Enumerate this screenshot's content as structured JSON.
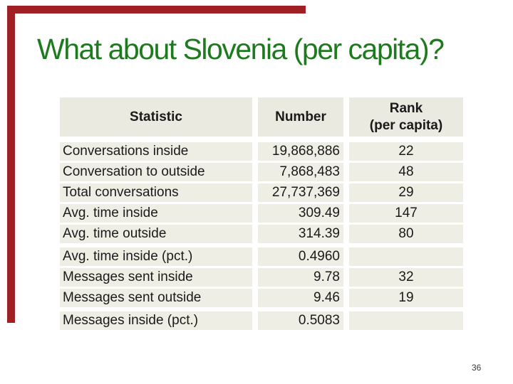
{
  "slide": {
    "title": "What about Slovenia (per capita)?",
    "page_number": "36"
  },
  "theme": {
    "background": "#ffffff",
    "title_color": "#1e7a1e",
    "accent_bar_color": "#9e1f24",
    "header_bg": "#eaeae0",
    "cell_bg": "#efeee5",
    "text_color": "#1a1a1a",
    "page_number_color": "#3a3a3a"
  },
  "table": {
    "columns": [
      {
        "label": "Statistic"
      },
      {
        "label": "Number"
      },
      {
        "label": "Rank",
        "label2": "(per capita)"
      }
    ],
    "rows": [
      {
        "statistic": "Conversations inside",
        "number": "19,868,886",
        "rank": "22",
        "group_start": false
      },
      {
        "statistic": "Conversation to outside",
        "number": "7,868,483",
        "rank": "48",
        "group_start": false
      },
      {
        "statistic": "Total conversations",
        "number": "27,737,369",
        "rank": "29",
        "group_start": false
      },
      {
        "statistic": "Avg. time inside",
        "number": "309.49",
        "rank": "147",
        "group_start": false
      },
      {
        "statistic": "Avg. time outside",
        "number": "314.39",
        "rank": "80",
        "group_start": false
      },
      {
        "statistic": "Avg. time inside (pct.)",
        "number": "0.4960",
        "rank": "",
        "group_start": true
      },
      {
        "statistic": "Messages sent inside",
        "number": "9.78",
        "rank": "32",
        "group_start": false
      },
      {
        "statistic": "Messages sent outside",
        "number": "9.46",
        "rank": "19",
        "group_start": false
      },
      {
        "statistic": "Messages inside (pct.)",
        "number": "0.5083",
        "rank": "",
        "group_start": true
      }
    ]
  },
  "chart_data": {
    "type": "table",
    "title": "What about Slovenia (per capita)?",
    "columns": [
      "Statistic",
      "Number",
      "Rank (per capita)"
    ],
    "rows": [
      [
        "Conversations inside",
        "19,868,886",
        "22"
      ],
      [
        "Conversation to outside",
        "7,868,483",
        "48"
      ],
      [
        "Total conversations",
        "27,737,369",
        "29"
      ],
      [
        "Avg. time inside",
        "309.49",
        "147"
      ],
      [
        "Avg. time outside",
        "314.39",
        "80"
      ],
      [
        "Avg. time inside (pct.)",
        "0.4960",
        ""
      ],
      [
        "Messages sent inside",
        "9.78",
        "32"
      ],
      [
        "Messages sent outside",
        "9.46",
        "19"
      ],
      [
        "Messages inside (pct.)",
        "0.5083",
        ""
      ]
    ]
  }
}
